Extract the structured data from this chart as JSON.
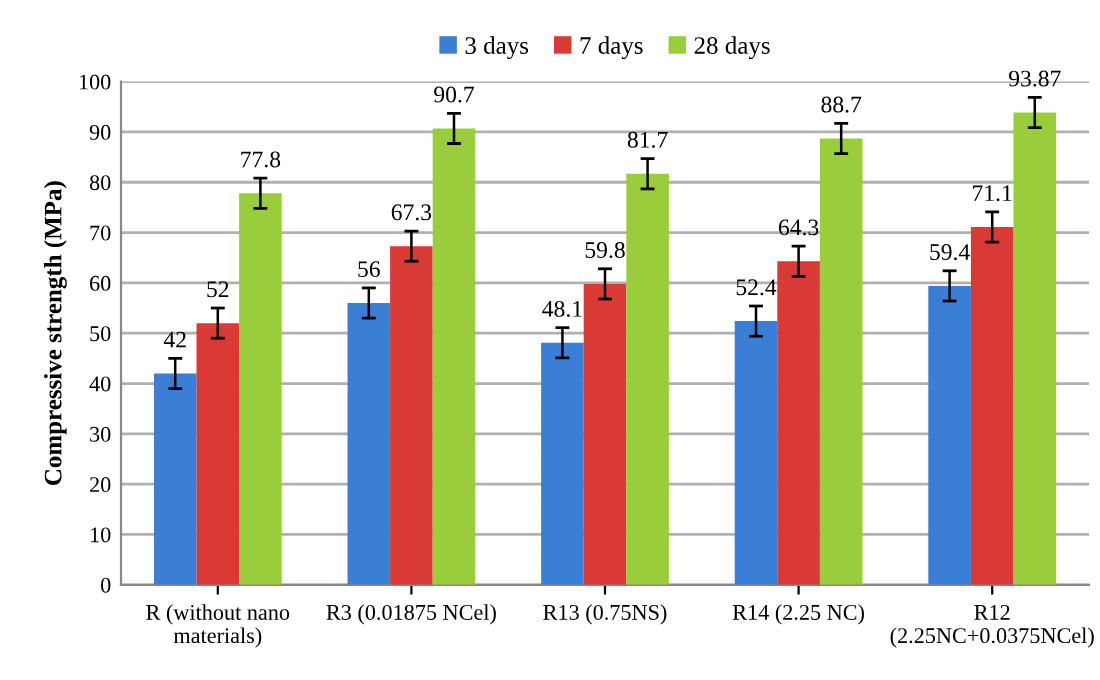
{
  "chart_data": {
    "type": "bar",
    "ylabel": "Compressive strength (MPa)",
    "categories": [
      "R (without nano\nmaterials)",
      "R3 (0.01875 NCel)",
      "R13 (0.75NS)",
      "R14 (2.25 NC)",
      "R12\n(2.25NC+0.0375NCel)"
    ],
    "series": [
      {
        "name": "3 days",
        "color": "#3a7fd5",
        "values": [
          42,
          56,
          48.1,
          52.4,
          59.4
        ],
        "errors": [
          3,
          3,
          3,
          3,
          3
        ]
      },
      {
        "name": "7 days",
        "color": "#d93a35",
        "values": [
          52,
          67.3,
          59.8,
          64.3,
          71.1
        ],
        "errors": [
          3,
          3,
          3,
          3,
          3
        ]
      },
      {
        "name": "28 days",
        "color": "#9acd3c",
        "values": [
          77.8,
          90.7,
          81.7,
          88.7,
          93.87
        ],
        "errors": [
          3,
          3,
          3,
          3,
          3
        ]
      }
    ],
    "ylim": [
      0,
      100
    ],
    "yticks": [
      0,
      10,
      20,
      30,
      40,
      50,
      60,
      70,
      80,
      90,
      100
    ],
    "grid": "y",
    "legend": "top",
    "data_labels": true
  }
}
